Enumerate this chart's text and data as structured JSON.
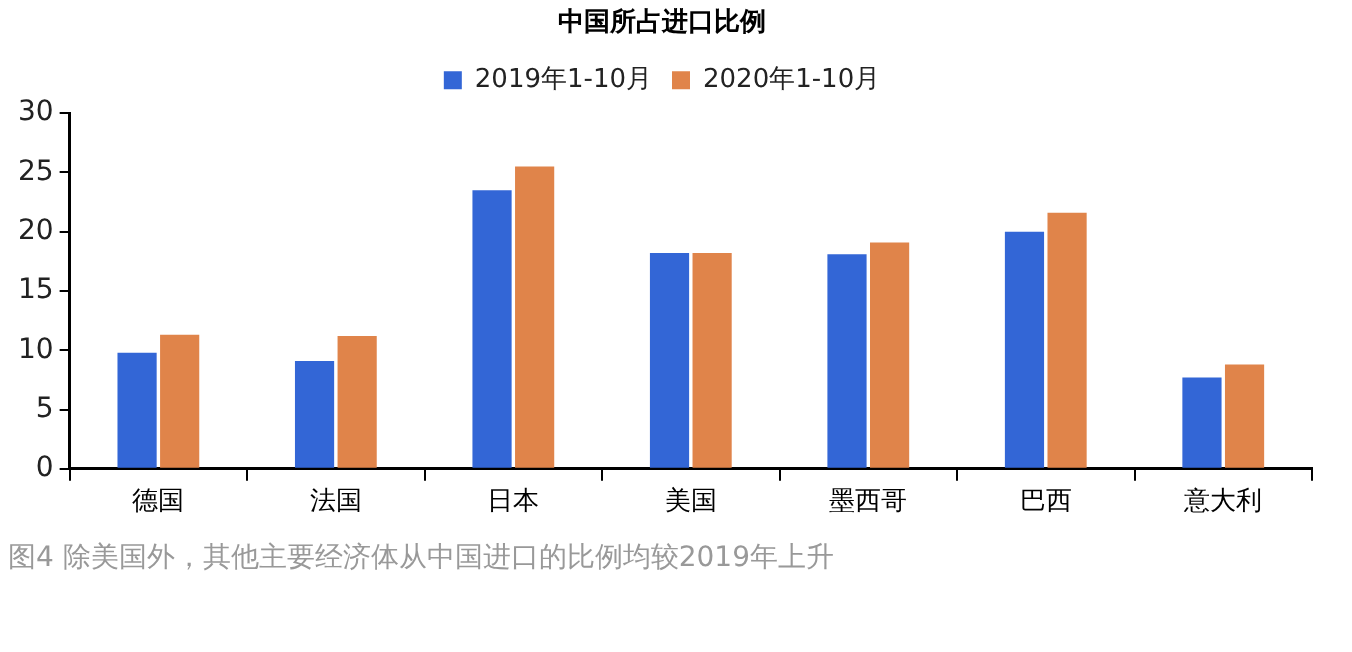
{
  "chart_data": {
    "type": "bar",
    "title": "中国所占进口比例",
    "categories": [
      "德国",
      "法国",
      "日本",
      "美国",
      "墨西哥",
      "巴西",
      "意大利"
    ],
    "series": [
      {
        "name": "2019年1-10月",
        "color": "#3366d6",
        "values": [
          9.8,
          9.1,
          23.5,
          18.2,
          18.1,
          20.0,
          7.7
        ]
      },
      {
        "name": "2020年1-10月",
        "color": "#e0844a",
        "values": [
          11.3,
          11.2,
          25.5,
          18.2,
          19.1,
          21.6,
          8.8
        ]
      }
    ],
    "ylim": [
      0,
      30
    ],
    "yticks": [
      0,
      5,
      10,
      15,
      20,
      25,
      30
    ],
    "grid": false,
    "legend": "top",
    "annotations": [
      "图4  除美国外，其他主要经济体从中国进口的比例均较2019年上升"
    ]
  }
}
